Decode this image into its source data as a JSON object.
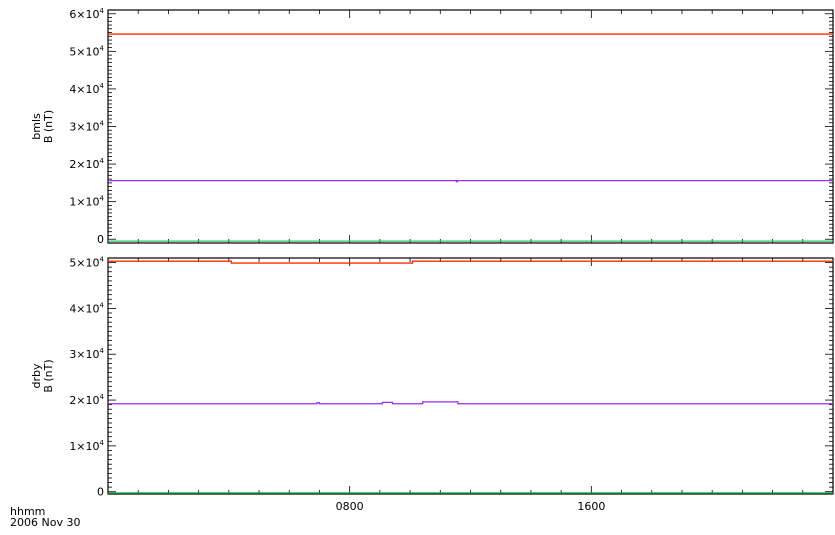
{
  "chart_data": [
    {
      "type": "line",
      "ylabel": "B (nT)",
      "station": "bmls",
      "yticks": [
        {
          "value": 0,
          "mant": "0",
          "exp": ""
        },
        {
          "value": 10000,
          "mant": "1×10",
          "exp": "4"
        },
        {
          "value": 20000,
          "mant": "2×10",
          "exp": "4"
        },
        {
          "value": 30000,
          "mant": "3×10",
          "exp": "4"
        },
        {
          "value": 40000,
          "mant": "4×10",
          "exp": "4"
        },
        {
          "value": 50000,
          "mant": "5×10",
          "exp": "4"
        },
        {
          "value": 60000,
          "mant": "6×10",
          "exp": "4"
        }
      ],
      "ylim": [
        -1000,
        61000
      ],
      "xlim": [
        0,
        1440
      ],
      "series": [
        {
          "color": "#ff2a00",
          "x": [
            0,
            1440
          ],
          "values": [
            54600,
            54600
          ]
        },
        {
          "color": "#9a2cf0",
          "x": [
            0,
            690,
            692,
            694,
            1440
          ],
          "values": [
            15600,
            15600,
            15300,
            15600,
            15600
          ]
        },
        {
          "color": "#2fc060",
          "x": [
            0,
            1440
          ],
          "values": [
            -500,
            -500
          ]
        }
      ]
    },
    {
      "type": "line",
      "ylabel": "B (nT)",
      "station": "drby",
      "yticks": [
        {
          "value": 0,
          "mant": "0",
          "exp": ""
        },
        {
          "value": 10000,
          "mant": "1×10",
          "exp": "4"
        },
        {
          "value": 20000,
          "mant": "2×10",
          "exp": "4"
        },
        {
          "value": 30000,
          "mant": "3×10",
          "exp": "4"
        },
        {
          "value": 40000,
          "mant": "4×10",
          "exp": "4"
        },
        {
          "value": 50000,
          "mant": "5×10",
          "exp": "4"
        }
      ],
      "ylim": [
        -500,
        51000
      ],
      "xlim": [
        0,
        1440
      ],
      "series": [
        {
          "color": "#ff2a00",
          "x": [
            0,
            240,
            245,
            600,
            605,
            1440
          ],
          "values": [
            50300,
            50300,
            49900,
            49900,
            50300,
            50300
          ]
        },
        {
          "color": "#9a2cf0",
          "x": [
            0,
            410,
            415,
            420,
            540,
            545,
            560,
            565,
            620,
            625,
            690,
            695,
            1440
          ],
          "values": [
            19200,
            19200,
            19400,
            19200,
            19200,
            19500,
            19500,
            19200,
            19200,
            19600,
            19600,
            19200,
            19200
          ]
        },
        {
          "color": "#10a030",
          "x": [
            0,
            1440
          ],
          "values": [
            -300,
            -300
          ]
        }
      ]
    }
  ],
  "xaxis": {
    "ticks": [
      {
        "value": 480,
        "label": "0800"
      },
      {
        "value": 960,
        "label": "1600"
      }
    ]
  },
  "footer": {
    "line1": "hhmm",
    "line2": "2006 Nov 30"
  }
}
